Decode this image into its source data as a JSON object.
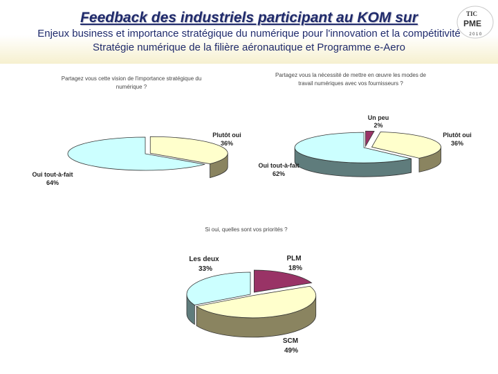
{
  "header": {
    "title": "Feedback des industriels participant au KOM sur",
    "subtitle_line1": "Enjeux business et importance stratégique du numérique pour l'innovation et la compétitivité",
    "subtitle_line2": "Stratégie numérique de la filière aéronautique et Programme e-Aero",
    "logo": {
      "line1": "TIC",
      "line2": "PME",
      "line3": "2010"
    }
  },
  "colors": {
    "header_text": "#1f2a6b",
    "light_cyan": "#ccffff",
    "light_yellow": "#ffffcc",
    "maroon": "#993366"
  },
  "chart_data": [
    {
      "type": "pie",
      "title_line1": "Partagez vous cette vision de l'importance stratégique du",
      "title_line2": "numérique ?",
      "slices": [
        {
          "label": "Oui tout-à-fait",
          "value": 64,
          "pct": "64%",
          "color": "#ccffff"
        },
        {
          "label": "Plutôt oui",
          "value": 36,
          "pct": "36%",
          "color": "#ffffcc"
        }
      ]
    },
    {
      "type": "pie",
      "title_line1": "Partagez vous la nécessité de mettre en œuvre les modes de",
      "title_line2": "travail numériques avec vos fournisseurs ?",
      "slices": [
        {
          "label": "Un peu",
          "value": 2,
          "pct": "2%",
          "color": "#993366"
        },
        {
          "label": "Plutôt oui",
          "value": 36,
          "pct": "36%",
          "color": "#ffffcc"
        },
        {
          "label": "Oui tout-à-fait",
          "value": 62,
          "pct": "62%",
          "color": "#ccffff"
        }
      ]
    },
    {
      "type": "pie",
      "title_line1": "Si oui, quelles sont vos priorités ?",
      "title_line2": "",
      "slices": [
        {
          "label": "PLM",
          "value": 18,
          "pct": "18%",
          "color": "#993366"
        },
        {
          "label": "SCM",
          "value": 49,
          "pct": "49%",
          "color": "#ffffcc"
        },
        {
          "label": "Les deux",
          "value": 33,
          "pct": "33%",
          "color": "#ccffff"
        }
      ]
    }
  ]
}
